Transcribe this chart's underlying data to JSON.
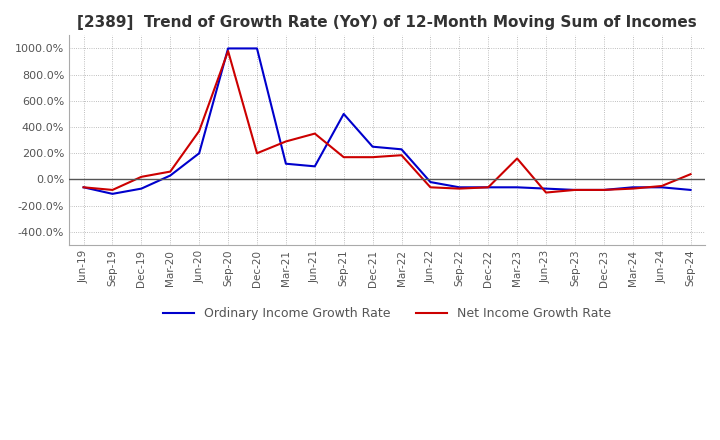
{
  "title": "[2389]  Trend of Growth Rate (YoY) of 12-Month Moving Sum of Incomes",
  "title_fontsize": 11,
  "ylim": [
    -500,
    1100
  ],
  "yticks": [
    -400,
    -200,
    0,
    200,
    400,
    600,
    800,
    1000
  ],
  "background_color": "#ffffff",
  "legend_labels": [
    "Ordinary Income Growth Rate",
    "Net Income Growth Rate"
  ],
  "legend_colors": [
    "#0000cc",
    "#cc0000"
  ],
  "x_labels": [
    "Jun-19",
    "Sep-19",
    "Dec-19",
    "Mar-20",
    "Jun-20",
    "Sep-20",
    "Dec-20",
    "Mar-21",
    "Jun-21",
    "Sep-21",
    "Dec-21",
    "Mar-22",
    "Jun-22",
    "Sep-22",
    "Dec-22",
    "Mar-23",
    "Jun-23",
    "Sep-23",
    "Dec-23",
    "Mar-24",
    "Jun-24",
    "Sep-24"
  ],
  "ordinary_income_growth": [
    -60,
    -110,
    -70,
    30,
    200,
    1000,
    1000,
    120,
    100,
    500,
    250,
    230,
    -20,
    -60,
    -60,
    -60,
    -70,
    -80,
    -80,
    -60,
    -60,
    -80
  ],
  "net_income_growth": [
    -60,
    -80,
    20,
    60,
    370,
    980,
    200,
    290,
    350,
    170,
    170,
    185,
    -60,
    -70,
    -60,
    160,
    -100,
    -80,
    -80,
    -70,
    -50,
    40
  ]
}
